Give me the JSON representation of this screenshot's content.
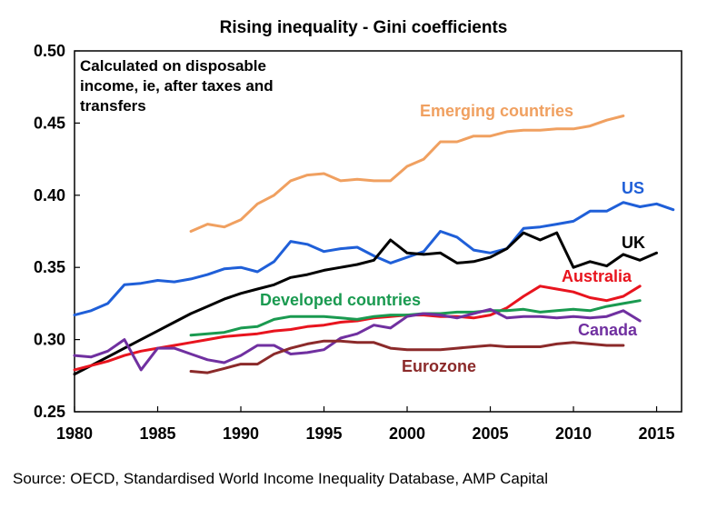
{
  "chart_data": {
    "type": "line",
    "title": "Rising inequality - Gini coefficients",
    "note": "Calculated on disposable\nincome, ie, after taxes and\ntransfers",
    "source": "Source: OECD, Standardised World Income Inequality Database, AMP Capital",
    "xlabel": "",
    "ylabel": "",
    "xlim": [
      1980,
      2016.5
    ],
    "ylim": [
      0.25,
      0.5
    ],
    "x_ticks": [
      "1980",
      "1985",
      "1990",
      "1995",
      "2000",
      "2005",
      "2010",
      "2015"
    ],
    "y_ticks": [
      "0.25",
      "0.30",
      "0.35",
      "0.40",
      "0.45",
      "0.50"
    ],
    "grid": false,
    "series": [
      {
        "name": "Emerging countries",
        "color": "#f0a060",
        "points": [
          [
            1987,
            0.375
          ],
          [
            1988,
            0.38
          ],
          [
            1989,
            0.378
          ],
          [
            1990,
            0.383
          ],
          [
            1991,
            0.394
          ],
          [
            1992,
            0.4
          ],
          [
            1993,
            0.41
          ],
          [
            1994,
            0.414
          ],
          [
            1995,
            0.415
          ],
          [
            1996,
            0.41
          ],
          [
            1997,
            0.411
          ],
          [
            1998,
            0.41
          ],
          [
            1999,
            0.41
          ],
          [
            2000,
            0.42
          ],
          [
            2001,
            0.425
          ],
          [
            2002,
            0.437
          ],
          [
            2003,
            0.437
          ],
          [
            2004,
            0.441
          ],
          [
            2005,
            0.441
          ],
          [
            2006,
            0.444
          ],
          [
            2007,
            0.445
          ],
          [
            2008,
            0.445
          ],
          [
            2009,
            0.446
          ],
          [
            2010,
            0.446
          ],
          [
            2011,
            0.448
          ],
          [
            2012,
            0.452
          ],
          [
            2013,
            0.455
          ]
        ]
      },
      {
        "name": "US",
        "color": "#1f5fd8",
        "points": [
          [
            1980,
            0.317
          ],
          [
            1981,
            0.32
          ],
          [
            1982,
            0.325
          ],
          [
            1983,
            0.338
          ],
          [
            1984,
            0.339
          ],
          [
            1985,
            0.341
          ],
          [
            1986,
            0.34
          ],
          [
            1987,
            0.342
          ],
          [
            1988,
            0.345
          ],
          [
            1989,
            0.349
          ],
          [
            1990,
            0.35
          ],
          [
            1991,
            0.347
          ],
          [
            1992,
            0.354
          ],
          [
            1993,
            0.368
          ],
          [
            1994,
            0.366
          ],
          [
            1995,
            0.361
          ],
          [
            1996,
            0.363
          ],
          [
            1997,
            0.364
          ],
          [
            1998,
            0.358
          ],
          [
            1999,
            0.353
          ],
          [
            2000,
            0.357
          ],
          [
            2001,
            0.361
          ],
          [
            2002,
            0.375
          ],
          [
            2003,
            0.371
          ],
          [
            2004,
            0.362
          ],
          [
            2005,
            0.36
          ],
          [
            2006,
            0.363
          ],
          [
            2007,
            0.377
          ],
          [
            2008,
            0.378
          ],
          [
            2009,
            0.38
          ],
          [
            2010,
            0.382
          ],
          [
            2011,
            0.389
          ],
          [
            2012,
            0.389
          ],
          [
            2013,
            0.395
          ],
          [
            2014,
            0.392
          ],
          [
            2015,
            0.394
          ],
          [
            2016,
            0.39
          ]
        ]
      },
      {
        "name": "UK",
        "color": "#000000",
        "points": [
          [
            1980,
            0.276
          ],
          [
            1981,
            0.282
          ],
          [
            1982,
            0.288
          ],
          [
            1983,
            0.294
          ],
          [
            1984,
            0.3
          ],
          [
            1985,
            0.306
          ],
          [
            1986,
            0.312
          ],
          [
            1987,
            0.318
          ],
          [
            1988,
            0.323
          ],
          [
            1989,
            0.328
          ],
          [
            1990,
            0.332
          ],
          [
            1991,
            0.335
          ],
          [
            1992,
            0.338
          ],
          [
            1993,
            0.343
          ],
          [
            1994,
            0.345
          ],
          [
            1995,
            0.348
          ],
          [
            1996,
            0.35
          ],
          [
            1997,
            0.352
          ],
          [
            1998,
            0.355
          ],
          [
            1999,
            0.369
          ],
          [
            2000,
            0.36
          ],
          [
            2001,
            0.359
          ],
          [
            2002,
            0.36
          ],
          [
            2003,
            0.353
          ],
          [
            2004,
            0.354
          ],
          [
            2005,
            0.357
          ],
          [
            2006,
            0.363
          ],
          [
            2007,
            0.374
          ],
          [
            2008,
            0.369
          ],
          [
            2009,
            0.374
          ],
          [
            2010,
            0.35
          ],
          [
            2011,
            0.354
          ],
          [
            2012,
            0.351
          ],
          [
            2013,
            0.359
          ],
          [
            2014,
            0.355
          ],
          [
            2015,
            0.36
          ]
        ]
      },
      {
        "name": "Australia",
        "color": "#e8141e",
        "points": [
          [
            1980,
            0.279
          ],
          [
            1981,
            0.282
          ],
          [
            1982,
            0.285
          ],
          [
            1983,
            0.289
          ],
          [
            1984,
            0.292
          ],
          [
            1985,
            0.294
          ],
          [
            1986,
            0.296
          ],
          [
            1987,
            0.298
          ],
          [
            1988,
            0.3
          ],
          [
            1989,
            0.302
          ],
          [
            1990,
            0.303
          ],
          [
            1991,
            0.304
          ],
          [
            1992,
            0.306
          ],
          [
            1993,
            0.307
          ],
          [
            1994,
            0.309
          ],
          [
            1995,
            0.31
          ],
          [
            1996,
            0.312
          ],
          [
            1997,
            0.313
          ],
          [
            1998,
            0.315
          ],
          [
            1999,
            0.316
          ],
          [
            2000,
            0.317
          ],
          [
            2001,
            0.317
          ],
          [
            2002,
            0.316
          ],
          [
            2003,
            0.316
          ],
          [
            2004,
            0.315
          ],
          [
            2005,
            0.317
          ],
          [
            2006,
            0.322
          ],
          [
            2007,
            0.33
          ],
          [
            2008,
            0.337
          ],
          [
            2009,
            0.335
          ],
          [
            2010,
            0.333
          ],
          [
            2011,
            0.329
          ],
          [
            2012,
            0.327
          ],
          [
            2013,
            0.33
          ],
          [
            2014,
            0.337
          ]
        ]
      },
      {
        "name": "Developed countries",
        "color": "#1a9a50",
        "points": [
          [
            1987,
            0.303
          ],
          [
            1988,
            0.304
          ],
          [
            1989,
            0.305
          ],
          [
            1990,
            0.308
          ],
          [
            1991,
            0.309
          ],
          [
            1992,
            0.314
          ],
          [
            1993,
            0.316
          ],
          [
            1994,
            0.316
          ],
          [
            1995,
            0.316
          ],
          [
            1996,
            0.315
          ],
          [
            1997,
            0.314
          ],
          [
            1998,
            0.316
          ],
          [
            1999,
            0.317
          ],
          [
            2000,
            0.317
          ],
          [
            2001,
            0.318
          ],
          [
            2002,
            0.318
          ],
          [
            2003,
            0.319
          ],
          [
            2004,
            0.319
          ],
          [
            2005,
            0.32
          ],
          [
            2006,
            0.32
          ],
          [
            2007,
            0.321
          ],
          [
            2008,
            0.319
          ],
          [
            2009,
            0.32
          ],
          [
            2010,
            0.321
          ],
          [
            2011,
            0.32
          ],
          [
            2012,
            0.323
          ],
          [
            2013,
            0.325
          ],
          [
            2014,
            0.327
          ]
        ]
      },
      {
        "name": "Canada",
        "color": "#7030a0",
        "points": [
          [
            1980,
            0.289
          ],
          [
            1981,
            0.288
          ],
          [
            1982,
            0.292
          ],
          [
            1983,
            0.3
          ],
          [
            1984,
            0.279
          ],
          [
            1985,
            0.294
          ],
          [
            1986,
            0.294
          ],
          [
            1987,
            0.29
          ],
          [
            1988,
            0.286
          ],
          [
            1989,
            0.284
          ],
          [
            1990,
            0.289
          ],
          [
            1991,
            0.296
          ],
          [
            1992,
            0.296
          ],
          [
            1993,
            0.29
          ],
          [
            1994,
            0.291
          ],
          [
            1995,
            0.293
          ],
          [
            1996,
            0.301
          ],
          [
            1997,
            0.304
          ],
          [
            1998,
            0.31
          ],
          [
            1999,
            0.308
          ],
          [
            2000,
            0.316
          ],
          [
            2001,
            0.318
          ],
          [
            2002,
            0.317
          ],
          [
            2003,
            0.315
          ],
          [
            2004,
            0.318
          ],
          [
            2005,
            0.321
          ],
          [
            2006,
            0.315
          ],
          [
            2007,
            0.316
          ],
          [
            2008,
            0.316
          ],
          [
            2009,
            0.315
          ],
          [
            2010,
            0.316
          ],
          [
            2011,
            0.315
          ],
          [
            2012,
            0.316
          ],
          [
            2013,
            0.32
          ],
          [
            2014,
            0.313
          ]
        ]
      },
      {
        "name": "Eurozone",
        "color": "#8b2a2a",
        "points": [
          [
            1987,
            0.278
          ],
          [
            1988,
            0.277
          ],
          [
            1989,
            0.28
          ],
          [
            1990,
            0.283
          ],
          [
            1991,
            0.283
          ],
          [
            1992,
            0.29
          ],
          [
            1993,
            0.294
          ],
          [
            1994,
            0.297
          ],
          [
            1995,
            0.299
          ],
          [
            1996,
            0.299
          ],
          [
            1997,
            0.298
          ],
          [
            1998,
            0.298
          ],
          [
            1999,
            0.294
          ],
          [
            2000,
            0.293
          ],
          [
            2001,
            0.293
          ],
          [
            2002,
            0.293
          ],
          [
            2003,
            0.294
          ],
          [
            2004,
            0.295
          ],
          [
            2005,
            0.296
          ],
          [
            2006,
            0.295
          ],
          [
            2007,
            0.295
          ],
          [
            2008,
            0.295
          ],
          [
            2009,
            0.297
          ],
          [
            2010,
            0.298
          ],
          [
            2011,
            0.297
          ],
          [
            2012,
            0.296
          ],
          [
            2013,
            0.296
          ]
        ]
      }
    ]
  }
}
